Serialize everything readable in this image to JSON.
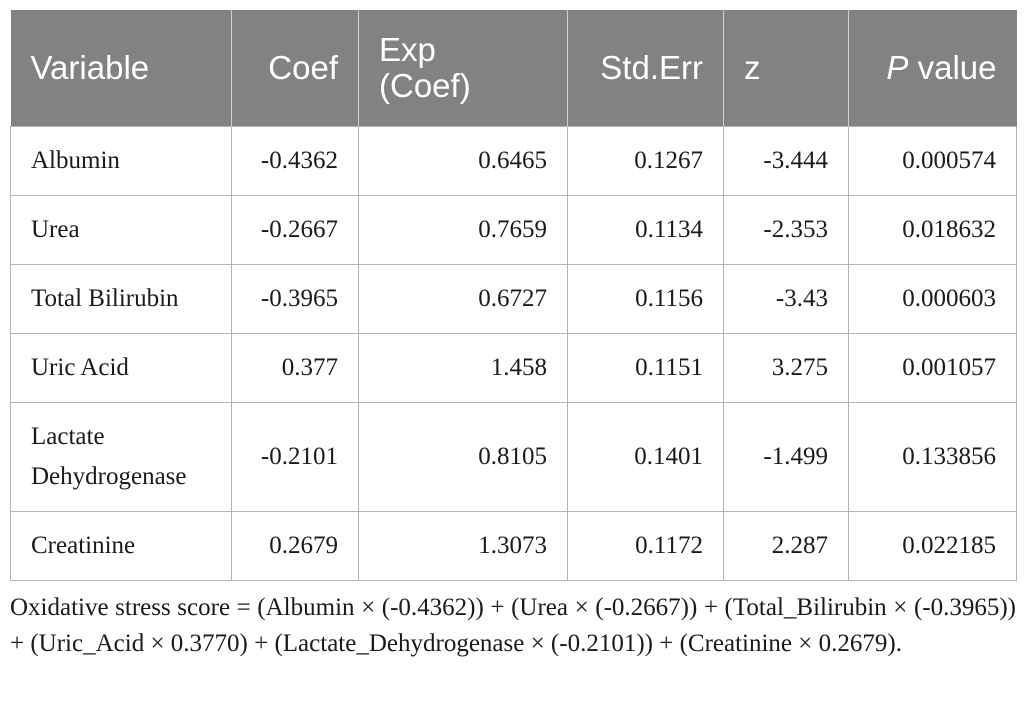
{
  "table": {
    "headers": {
      "variable": "Variable",
      "coef": "Coef",
      "exp_coef_line1": "Exp",
      "exp_coef_line2": "(Coef)",
      "std_err": "Std.Err",
      "z": "z",
      "p_value_italic": "P",
      "p_value_rest": " value"
    },
    "rows": [
      {
        "variable": "Albumin",
        "coef": "-0.4362",
        "exp_coef": "0.6465",
        "std_err": "0.1267",
        "z": "-3.444",
        "p_value": "0.000574"
      },
      {
        "variable": "Urea",
        "coef": "-0.2667",
        "exp_coef": "0.7659",
        "std_err": "0.1134",
        "z": "-2.353",
        "p_value": "0.018632"
      },
      {
        "variable": "Total Bilirubin",
        "coef": "-0.3965",
        "exp_coef": "0.6727",
        "std_err": "0.1156",
        "z": "-3.43",
        "p_value": "0.000603"
      },
      {
        "variable": "Uric Acid",
        "coef": "0.377",
        "exp_coef": "1.458",
        "std_err": "0.1151",
        "z": "3.275",
        "p_value": "0.001057"
      },
      {
        "variable_line1": "Lactate",
        "variable_line2": "Dehydrogenase",
        "coef": "-0.2101",
        "exp_coef": "0.8105",
        "std_err": "0.1401",
        "z": "-1.499",
        "p_value": "0.133856"
      },
      {
        "variable": "Creatinine",
        "coef": "0.2679",
        "exp_coef": "1.3073",
        "std_err": "0.1172",
        "z": "2.287",
        "p_value": "0.022185"
      }
    ]
  },
  "footnote": "Oxidative stress score = (Albumin × (-0.4362)) + (Urea × (-0.2667)) + (Total_Bilirubin × (-0.3965)) + (Uric_Acid × 0.3770) + (Lactate_Dehydrogenase × (-0.2101)) + (Creatinine × 0.2679).",
  "colors": {
    "header_bg": "#828282",
    "header_text": "#ffffff",
    "grid": "#b4b4b4"
  }
}
